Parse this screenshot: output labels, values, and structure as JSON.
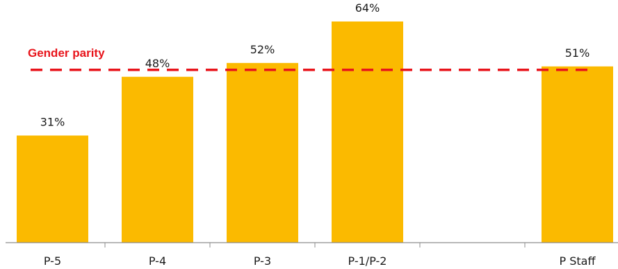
{
  "chart_data": {
    "type": "bar",
    "categories": [
      "P-5",
      "P-4",
      "P-3",
      "P-1/P-2",
      "",
      "P Staff"
    ],
    "values": [
      31,
      48,
      52,
      64,
      null,
      51
    ],
    "value_labels": [
      "31%",
      "48%",
      "52%",
      "64%",
      "",
      "51%"
    ],
    "ylim": [
      0,
      70
    ],
    "grid": false,
    "legend": "none",
    "reference_line": {
      "label": "Gender parity",
      "value": 50
    },
    "colors": {
      "bar": "#FBBA00",
      "reference_line": "#E8141B",
      "axis": "#8c8c8c",
      "text": "#1a1a1a"
    }
  }
}
